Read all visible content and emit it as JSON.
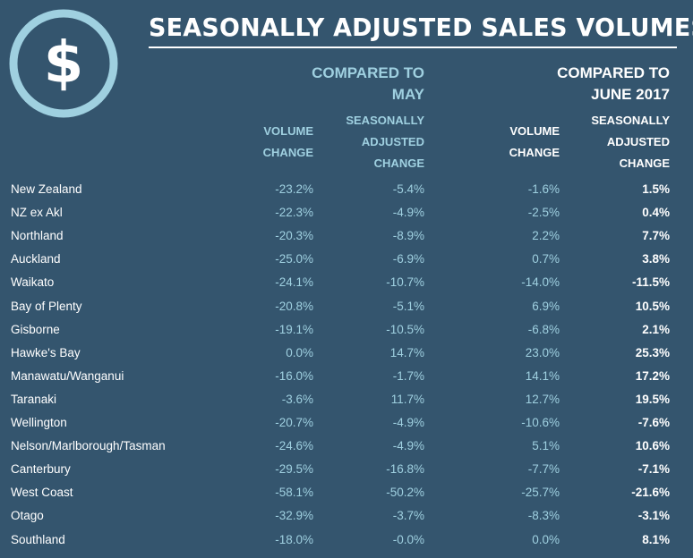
{
  "title": "SEASONALLY ADJUSTED SALES VOLUMES",
  "logo": {
    "icon": "dollar-icon",
    "symbol": "$",
    "color": "#9fd0e0"
  },
  "groups": {
    "may": {
      "line1": "COMPARED TO",
      "line2": "MAY"
    },
    "june": {
      "line1": "COMPARED TO",
      "line2": "JUNE 2017"
    }
  },
  "column_headers": {
    "volume": {
      "line1": "VOLUME",
      "line2": "CHANGE"
    },
    "seasonal": {
      "line1": "SEASONALLY",
      "line2": "ADJUSTED",
      "line3": "CHANGE"
    }
  },
  "colors": {
    "background": "#34556e",
    "accent": "#9fd0e0",
    "text": "#ffffff"
  },
  "chart_data": {
    "type": "table",
    "title": "SEASONALLY ADJUSTED SALES VOLUMES",
    "columns": [
      "Compared to May - Volume change",
      "Compared to May - Seasonally adjusted change",
      "Compared to June 2017 - Volume change",
      "Compared to June 2017 - Seasonally adjusted change"
    ],
    "rows": [
      {
        "region": "New Zealand",
        "values": [
          "-23.2%",
          "-5.4%",
          "-1.6%",
          "1.5%"
        ]
      },
      {
        "region": "NZ ex Akl",
        "values": [
          "-22.3%",
          "-4.9%",
          "-2.5%",
          "0.4%"
        ]
      },
      {
        "region": "Northland",
        "values": [
          "-20.3%",
          "-8.9%",
          "2.2%",
          "7.7%"
        ]
      },
      {
        "region": "Auckland",
        "values": [
          "-25.0%",
          "-6.9%",
          "0.7%",
          "3.8%"
        ]
      },
      {
        "region": "Waikato",
        "values": [
          "-24.1%",
          "-10.7%",
          "-14.0%",
          "-11.5%"
        ]
      },
      {
        "region": "Bay of Plenty",
        "values": [
          "-20.8%",
          "-5.1%",
          "6.9%",
          "10.5%"
        ]
      },
      {
        "region": "Gisborne",
        "values": [
          "-19.1%",
          "-10.5%",
          "-6.8%",
          "2.1%"
        ]
      },
      {
        "region": "Hawke's Bay",
        "values": [
          "0.0%",
          "14.7%",
          "23.0%",
          "25.3%"
        ]
      },
      {
        "region": "Manawatu/Wanganui",
        "values": [
          "-16.0%",
          "-1.7%",
          "14.1%",
          "17.2%"
        ]
      },
      {
        "region": "Taranaki",
        "values": [
          "-3.6%",
          "11.7%",
          "12.7%",
          "19.5%"
        ]
      },
      {
        "region": "Wellington",
        "values": [
          "-20.7%",
          "-4.9%",
          "-10.6%",
          "-7.6%"
        ]
      },
      {
        "region": "Nelson/Marlborough/Tasman",
        "values": [
          "-24.6%",
          "-4.9%",
          "5.1%",
          "10.6%"
        ]
      },
      {
        "region": "Canterbury",
        "values": [
          "-29.5%",
          "-16.8%",
          "-7.7%",
          "-7.1%"
        ]
      },
      {
        "region": "West Coast",
        "values": [
          "-58.1%",
          "-50.2%",
          "-25.7%",
          "-21.6%"
        ]
      },
      {
        "region": "Otago",
        "values": [
          "-32.9%",
          "-3.7%",
          "-8.3%",
          "-3.1%"
        ]
      },
      {
        "region": "Southland",
        "values": [
          "-18.0%",
          "-0.0%",
          "0.0%",
          "8.1%"
        ]
      }
    ]
  }
}
